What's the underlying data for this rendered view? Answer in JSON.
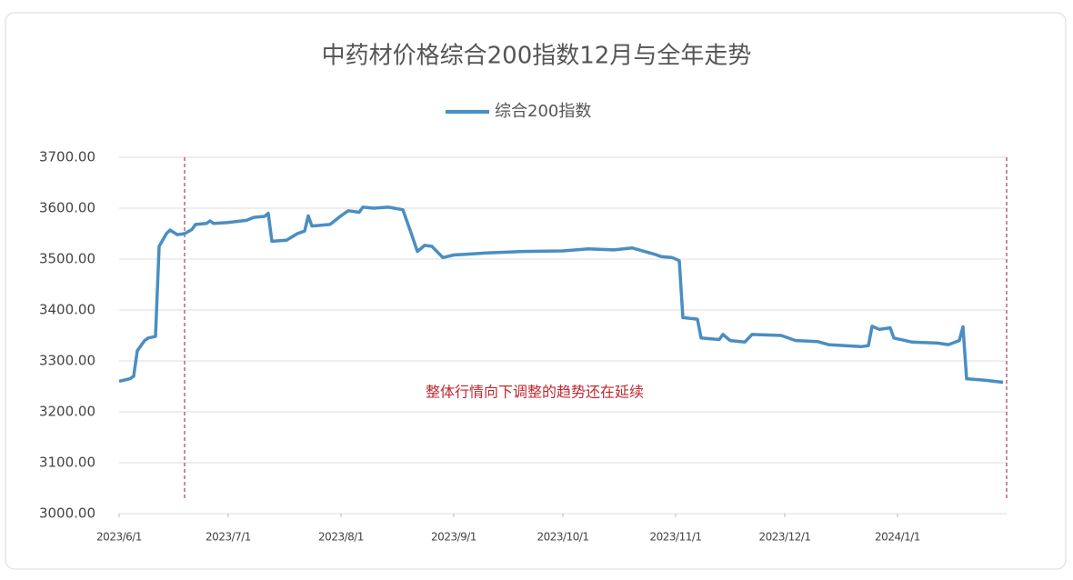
{
  "chart_data": {
    "type": "line",
    "title": "中药材价格综合200指数12月与全年走势",
    "annotation": "整体行情向下调整的趋势还在延续",
    "x": [
      "2023-06-01",
      "2023-06-04",
      "2023-06-05",
      "2023-06-06",
      "2023-06-08",
      "2023-06-09",
      "2023-06-11",
      "2023-06-12",
      "2023-06-14",
      "2023-06-15",
      "2023-06-17",
      "2023-06-19",
      "2023-06-21",
      "2023-06-22",
      "2023-06-25",
      "2023-06-26",
      "2023-06-27",
      "2023-07-01",
      "2023-07-06",
      "2023-07-08",
      "2023-07-11",
      "2023-07-12",
      "2023-07-13",
      "2023-07-17",
      "2023-07-20",
      "2023-07-22",
      "2023-07-23",
      "2023-07-24",
      "2023-07-29",
      "2023-08-01",
      "2023-08-03",
      "2023-08-06",
      "2023-08-07",
      "2023-08-10",
      "2023-08-14",
      "2023-08-18",
      "2023-08-20",
      "2023-08-22",
      "2023-08-24",
      "2023-08-26",
      "2023-08-29",
      "2023-09-01",
      "2023-09-10",
      "2023-09-20",
      "2023-10-01",
      "2023-10-08",
      "2023-10-15",
      "2023-10-20",
      "2023-10-26",
      "2023-10-28",
      "2023-10-31",
      "2023-11-02",
      "2023-11-03",
      "2023-11-07",
      "2023-11-08",
      "2023-11-13",
      "2023-11-14",
      "2023-11-16",
      "2023-11-20",
      "2023-11-22",
      "2023-11-30",
      "2023-12-04",
      "2023-12-10",
      "2023-12-13",
      "2023-12-22",
      "2023-12-24",
      "2023-12-25",
      "2023-12-27",
      "2023-12-30",
      "2023-12-31",
      "2024-01-05",
      "2024-01-12",
      "2024-01-15",
      "2024-01-18",
      "2024-01-19",
      "2024-01-20",
      "2024-01-25",
      "2024-01-30"
    ],
    "series": [
      {
        "name": "综合200指数",
        "color": "#4a8ec2",
        "values": [
          3260,
          3265,
          3270,
          3320,
          3340,
          3345,
          3348,
          3525,
          3550,
          3557,
          3548,
          3550,
          3558,
          3568,
          3570,
          3575,
          3570,
          3572,
          3576,
          3582,
          3584,
          3590,
          3535,
          3537,
          3550,
          3555,
          3585,
          3565,
          3568,
          3585,
          3595,
          3592,
          3602,
          3600,
          3602,
          3597,
          3557,
          3515,
          3527,
          3525,
          3503,
          3508,
          3512,
          3515,
          3516,
          3520,
          3518,
          3522,
          3510,
          3505,
          3503,
          3497,
          3385,
          3382,
          3345,
          3342,
          3352,
          3340,
          3337,
          3352,
          3350,
          3340,
          3338,
          3332,
          3328,
          3330,
          3368,
          3362,
          3365,
          3345,
          3337,
          3335,
          3332,
          3340,
          3367,
          3265,
          3262,
          3258
        ]
      }
    ],
    "xlim": [
      "2023-06-01",
      "2024-01-31"
    ],
    "xticks": [
      {
        "value": "2023-06-01",
        "label": "2023/6/1"
      },
      {
        "value": "2023-07-01",
        "label": "2023/7/1"
      },
      {
        "value": "2023-08-01",
        "label": "2023/8/1"
      },
      {
        "value": "2023-09-01",
        "label": "2023/9/1"
      },
      {
        "value": "2023-10-01",
        "label": "2023/10/1"
      },
      {
        "value": "2023-11-01",
        "label": "2023/11/1"
      },
      {
        "value": "2023-12-01",
        "label": "2023/12/1"
      },
      {
        "value": "2024-01-01",
        "label": "2024/1/1"
      }
    ],
    "ylim": [
      3000,
      3700
    ],
    "yticks": [
      {
        "value": 3000,
        "label": "3000.00"
      },
      {
        "value": 3100,
        "label": "3100.00"
      },
      {
        "value": 3200,
        "label": "3200.00"
      },
      {
        "value": 3300,
        "label": "3300.00"
      },
      {
        "value": 3400,
        "label": "3400.00"
      },
      {
        "value": 3500,
        "label": "3500.00"
      },
      {
        "value": 3600,
        "label": "3600.00"
      },
      {
        "value": 3700,
        "label": "3700.00"
      }
    ],
    "vlines": [
      "2023-06-19",
      "2024-01-31"
    ],
    "grid": true,
    "legend": "top"
  }
}
